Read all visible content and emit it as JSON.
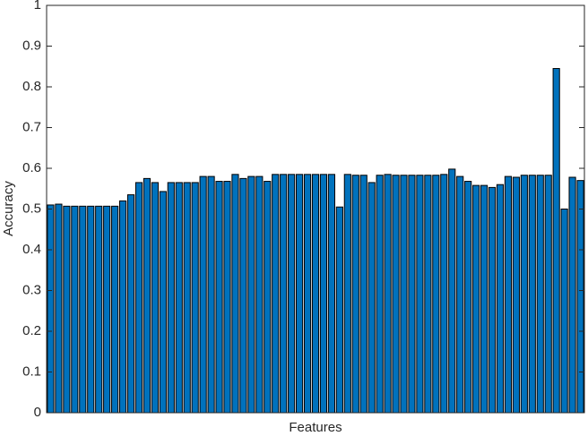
{
  "chart_data": {
    "type": "bar",
    "x_label": "Features",
    "y_label": "Accuracy",
    "categories": [
      null,
      null,
      null,
      null,
      null,
      null,
      null,
      null,
      null,
      null,
      null,
      null,
      null,
      null,
      null,
      null,
      null,
      null,
      null,
      null,
      null,
      null,
      null,
      null,
      null,
      null,
      null,
      null,
      null,
      null,
      null,
      null,
      null,
      null,
      null,
      null,
      null,
      null,
      null,
      null,
      null,
      null,
      null,
      null,
      null,
      null,
      null,
      null,
      null,
      null,
      null,
      null,
      null,
      null,
      null,
      null,
      null,
      null,
      null,
      null,
      null,
      null,
      null,
      null,
      null,
      null,
      null
    ],
    "values": [
      0.51,
      0.512,
      0.507,
      0.507,
      0.507,
      0.507,
      0.507,
      0.507,
      0.507,
      0.52,
      0.535,
      0.565,
      0.575,
      0.565,
      0.543,
      0.565,
      0.565,
      0.565,
      0.565,
      0.58,
      0.58,
      0.568,
      0.568,
      0.585,
      0.575,
      0.58,
      0.58,
      0.568,
      0.585,
      0.585,
      0.585,
      0.585,
      0.585,
      0.585,
      0.585,
      0.585,
      0.505,
      0.585,
      0.583,
      0.583,
      0.565,
      0.583,
      0.585,
      0.583,
      0.583,
      0.583,
      0.583,
      0.583,
      0.583,
      0.585,
      0.598,
      0.58,
      0.568,
      0.558,
      0.558,
      0.553,
      0.56,
      0.58,
      0.578,
      0.583,
      0.583,
      0.583,
      0.583,
      0.845,
      0.5,
      0.578,
      0.57
    ],
    "color": "#0072bd",
    "ylim": [
      0,
      1
    ],
    "yticks": [
      0,
      0.1,
      0.2,
      0.3,
      0.4,
      0.5,
      0.6,
      0.7,
      0.8,
      0.9,
      1
    ],
    "grid": false
  }
}
